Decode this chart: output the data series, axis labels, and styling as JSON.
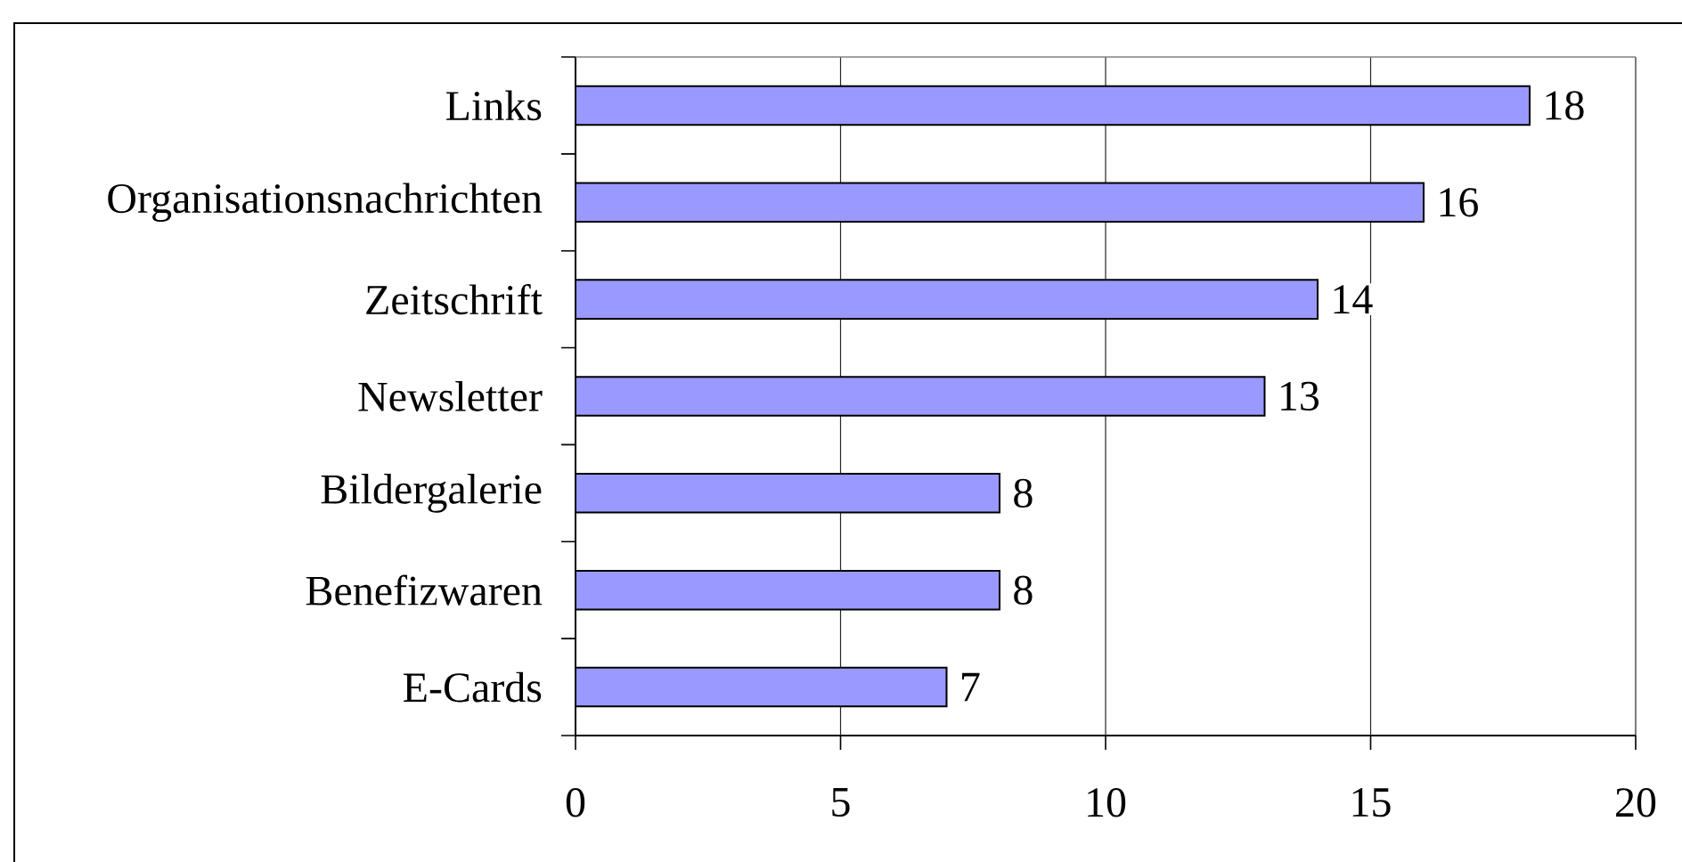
{
  "chart_data": {
    "type": "bar",
    "orientation": "horizontal",
    "categories": [
      "Links",
      "Organisationsnachrichten",
      "Zeitschrift",
      "Newsletter",
      "Bildergalerie",
      "Benefizwaren",
      "E-Cards"
    ],
    "values": [
      18,
      16,
      14,
      13,
      8,
      8,
      7
    ],
    "color": "#9999ff",
    "xlim": [
      0,
      20
    ],
    "xticks": [
      0,
      5,
      10,
      15,
      20
    ],
    "grid": "x",
    "data_labels": true
  }
}
